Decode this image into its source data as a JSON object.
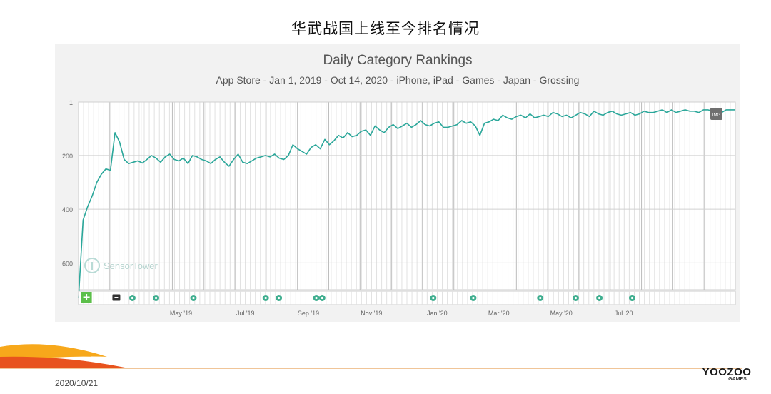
{
  "slide": {
    "title": "华武战国上线至今排名情况",
    "date": "2020/10/21",
    "brand": {
      "name": "YOOZOO",
      "sub": "GAMES",
      "accent": "#f39a1e"
    },
    "accent_colors": [
      "#f7a81b",
      "#e8531d",
      "#f0c46a"
    ]
  },
  "chart_data": {
    "type": "line",
    "title": "Daily Category Rankings",
    "subtitle": "App Store - Jan 1, 2019 - Oct 14, 2020 - iPhone, iPad - Games - Japan - Grossing",
    "y_inverted": true,
    "ylim": [
      1,
      700
    ],
    "y_ticks": [
      1,
      200,
      400,
      600
    ],
    "y_tick_labels": [
      "1",
      "200",
      "400",
      "600"
    ],
    "x_tick_labels": [
      "May '19",
      "Jul '19",
      "Sep '19",
      "Nov '19",
      "Jan '20",
      "Mar '20",
      "May '20",
      "Jul '20"
    ],
    "grid": true,
    "watermark": "SensorTower",
    "series": [
      {
        "color": "#2ba79a",
        "values": [
          730,
          440,
          390,
          350,
          300,
          270,
          250,
          255,
          115,
          150,
          215,
          230,
          225,
          220,
          228,
          215,
          200,
          210,
          225,
          205,
          195,
          215,
          220,
          210,
          230,
          200,
          205,
          215,
          220,
          230,
          215,
          205,
          225,
          240,
          215,
          195,
          225,
          230,
          220,
          210,
          205,
          200,
          205,
          195,
          210,
          215,
          200,
          160,
          175,
          185,
          195,
          170,
          160,
          175,
          140,
          160,
          145,
          125,
          135,
          115,
          130,
          125,
          110,
          105,
          125,
          90,
          105,
          115,
          95,
          85,
          100,
          90,
          80,
          95,
          85,
          70,
          85,
          90,
          80,
          75,
          95,
          95,
          90,
          85,
          70,
          80,
          75,
          90,
          125,
          80,
          75,
          65,
          70,
          50,
          60,
          65,
          55,
          50,
          60,
          45,
          60,
          55,
          50,
          55,
          40,
          45,
          55,
          50,
          60,
          50,
          40,
          45,
          55,
          35,
          45,
          50,
          40,
          35,
          45,
          50,
          45,
          40,
          50,
          45,
          35,
          40,
          40,
          35,
          30,
          40,
          30,
          40,
          35,
          30,
          35,
          35,
          40,
          30,
          30,
          35,
          30,
          40,
          30,
          30,
          30
        ]
      }
    ],
    "event_markers": [
      "plus",
      "note",
      "dot",
      "dot",
      "dot",
      "dot",
      "dot",
      "dot",
      "dot",
      "dot",
      "dot",
      "dot",
      "dot",
      "dot",
      "dot",
      "dot"
    ],
    "end_badge": "IMG"
  }
}
